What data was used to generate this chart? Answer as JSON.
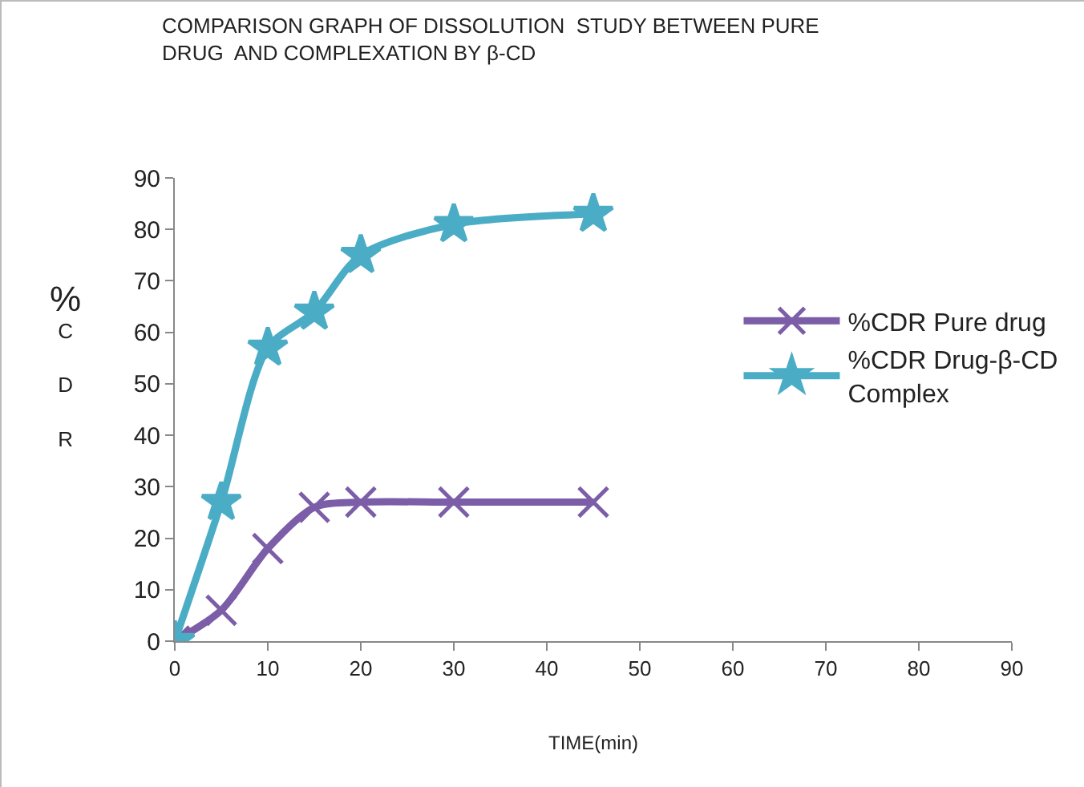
{
  "chart_data": {
    "type": "line",
    "title": "COMPARISON GRAPH OF DISSOLUTION  STUDY BETWEEN PURE\nDRUG  AND COMPLEXATION BY β-CD",
    "xlabel": "TIME(min)",
    "ylabel": "%CDR",
    "x": [
      0,
      5,
      10,
      15,
      20,
      30,
      45
    ],
    "series": [
      {
        "name": "%CDR Pure drug",
        "color": "#7b5ea7",
        "marker": "cross",
        "values": [
          0,
          6,
          18,
          26,
          27,
          27,
          27
        ]
      },
      {
        "name": "%CDR Drug-β-CD Complex",
        "color": "#4bacc6",
        "marker": "star",
        "values": [
          0,
          27,
          57,
          64,
          75,
          81,
          83
        ]
      }
    ],
    "xlim": [
      0,
      90
    ],
    "xticks": [
      0,
      10,
      20,
      30,
      40,
      50,
      60,
      70,
      80,
      90
    ],
    "ylim": [
      0,
      90
    ],
    "yticks": [
      0,
      10,
      20,
      30,
      40,
      50,
      60,
      70,
      80,
      90
    ],
    "grid": false,
    "legend": "right"
  }
}
